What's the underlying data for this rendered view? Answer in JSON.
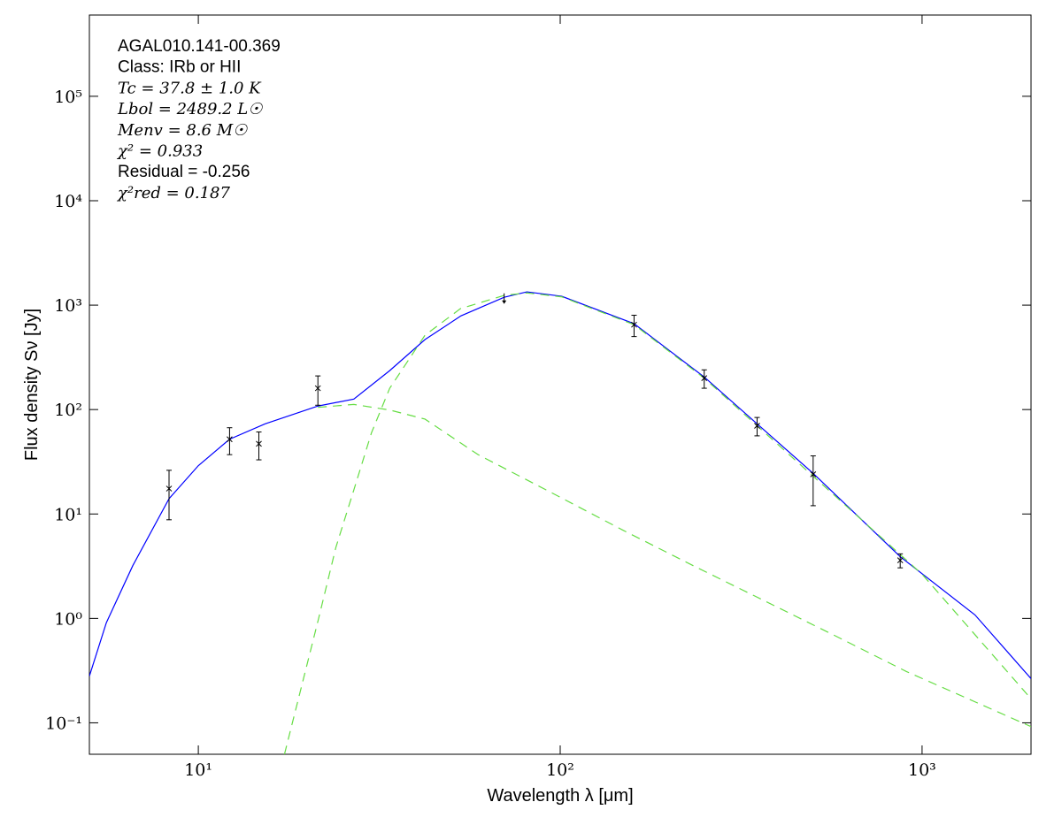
{
  "chart_data": {
    "type": "sed",
    "annotations": [
      "AGAL010.141-00.369",
      "Class: IRb or HII",
      "Tc = 37.8 ± 1.0 K",
      "Lbol = 2489.2 L☉",
      "Menv = 8.6 M☉",
      "χ² = 0.933",
      "Residual = -0.256",
      "χ²red = 0.187"
    ],
    "x_label": "Wavelength λ [μm]",
    "y_label": "Flux density Sν [Jy]",
    "xlog": true,
    "ylog": true,
    "xlim": [
      5,
      2000
    ],
    "ylim": [
      0.05,
      600000
    ],
    "xticks": [
      {
        "value": 10,
        "label": "10¹"
      },
      {
        "value": 100,
        "label": "10²"
      },
      {
        "value": 1000,
        "label": "10³"
      }
    ],
    "yticks": [
      {
        "value": 0.1,
        "label": "10⁻¹"
      },
      {
        "value": 1,
        "label": "10⁰"
      },
      {
        "value": 10,
        "label": "10¹"
      },
      {
        "value": 100,
        "label": "10²"
      },
      {
        "value": 1000,
        "label": "10³"
      },
      {
        "value": 10000,
        "label": "10⁴"
      },
      {
        "value": 100000,
        "label": "10⁵"
      }
    ],
    "points": {
      "color": "#000000",
      "x": [
        8.3,
        12.2,
        14.7,
        21.4,
        70,
        160,
        250,
        350,
        500,
        870
      ],
      "values": [
        17.5,
        52,
        47,
        160,
        1200,
        650,
        200,
        70,
        24,
        3.6
      ],
      "errors": [
        8.7,
        15,
        14,
        50,
        null,
        150,
        40,
        14,
        12,
        0.55
      ],
      "upper_limits": [
        false,
        false,
        false,
        false,
        true,
        false,
        false,
        false,
        false,
        false
      ]
    },
    "models": [
      {
        "color": "#0000ff",
        "dashed": false,
        "x": [
          5,
          5.57,
          6.59,
          8.3,
          10,
          12.2,
          15.3,
          21.4,
          26.9,
          33.8,
          42.3,
          53.2,
          70,
          80.9,
          101,
          160,
          250,
          350,
          500,
          870,
          1400,
          2000
        ],
        "values": [
          0.28,
          0.91,
          3.2,
          14,
          29,
          52,
          73,
          108,
          126,
          236,
          468,
          790,
          1190,
          1340,
          1215,
          664,
          205,
          73,
          24.5,
          3.9,
          1.08,
          0.265
        ]
      },
      {
        "color": "#66dd44",
        "dashed": true,
        "x": [
          17.3,
          19.2,
          21.5,
          24,
          26.9,
          30.1,
          33.8,
          42.3,
          53,
          70,
          80.9,
          101,
          160,
          250,
          350,
          500,
          1000,
          2000
        ],
        "values": [
          0.05,
          0.21,
          1.0,
          4.8,
          17,
          60,
          160,
          515,
          925,
          1240,
          1310,
          1200,
          650,
          200,
          70,
          23,
          2.65,
          0.17
        ]
      },
      {
        "color": "#66dd44",
        "dashed": true,
        "x": [
          21.4,
          26.9,
          33.8,
          42.3,
          59.3,
          94.6,
          149,
          233,
          366,
          576,
          905,
          2000
        ],
        "values": [
          105,
          112,
          99,
          81,
          37,
          16,
          7.0,
          3.2,
          1.48,
          0.68,
          0.31,
          0.092
        ]
      }
    ]
  }
}
